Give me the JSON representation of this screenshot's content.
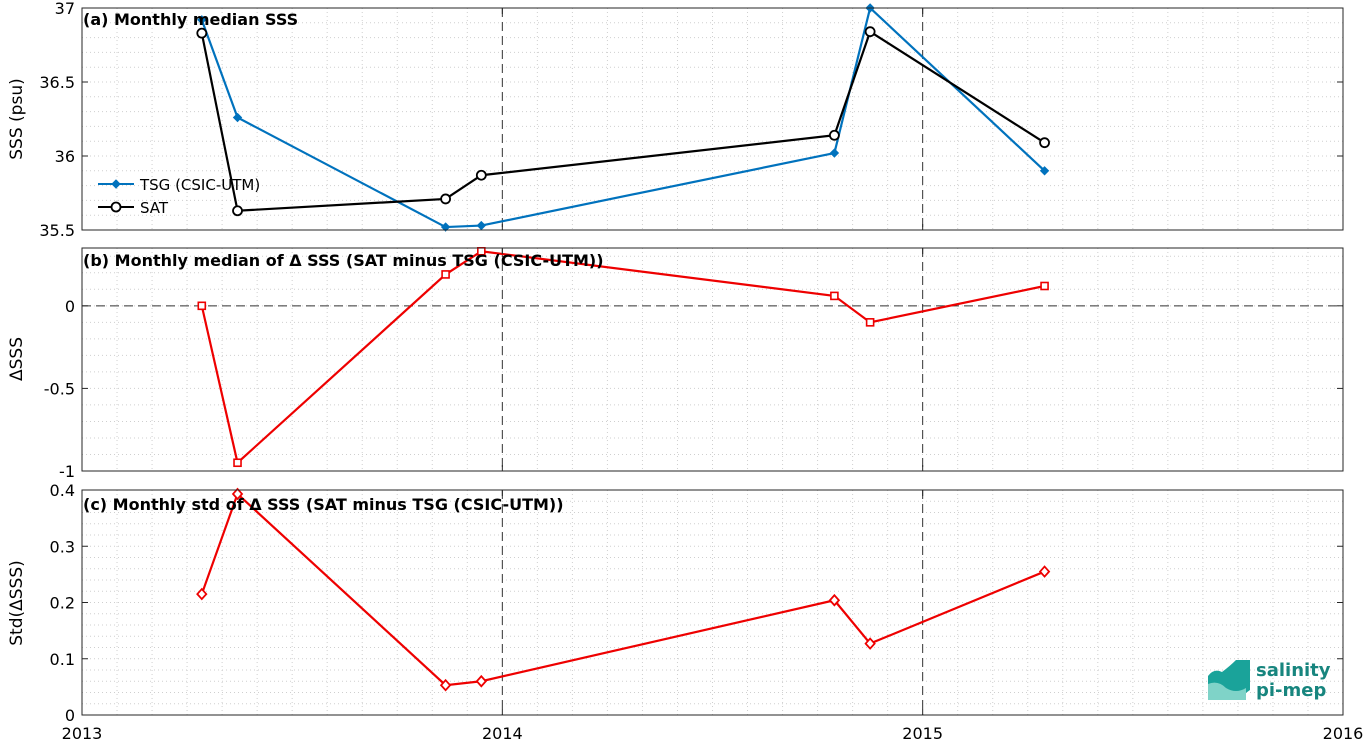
{
  "logo": {
    "line1": "salinity",
    "line2": "pi-mep"
  },
  "x_ticks": [
    {
      "label": "2013",
      "t": 2013.0
    },
    {
      "label": "2014",
      "t": 2014.0
    },
    {
      "label": "2015",
      "t": 2015.0
    },
    {
      "label": "2016",
      "t": 2016.0
    }
  ],
  "chart_data": [
    {
      "type": "line",
      "title": "(a) Monthly median SSS",
      "ylabel": "SSS (psu)",
      "ylim": [
        35.5,
        37
      ],
      "yticks": [
        35.5,
        36,
        36.5,
        37
      ],
      "ytick_labels": [
        "35.5",
        "36",
        "36.5",
        "37"
      ],
      "xlim": [
        2013.0,
        2016.0
      ],
      "grid": true,
      "legend_position": "middle-left",
      "series": [
        {
          "name": "TSG (CSIC-UTM)",
          "color": "#0072BD",
          "marker": "filled-diamond",
          "points": [
            {
              "x": 2013.285,
              "y": 36.92
            },
            {
              "x": 2013.37,
              "y": 36.26
            },
            {
              "x": 2013.865,
              "y": 35.52
            },
            {
              "x": 2013.95,
              "y": 35.53
            },
            {
              "x": 2014.79,
              "y": 36.02
            },
            {
              "x": 2014.875,
              "y": 37.0
            },
            {
              "x": 2015.29,
              "y": 35.9
            }
          ]
        },
        {
          "name": "SAT",
          "color": "#000000",
          "marker": "open-circle",
          "points": [
            {
              "x": 2013.285,
              "y": 36.83
            },
            {
              "x": 2013.37,
              "y": 35.63
            },
            {
              "x": 2013.865,
              "y": 35.71
            },
            {
              "x": 2013.95,
              "y": 35.87
            },
            {
              "x": 2014.79,
              "y": 36.14
            },
            {
              "x": 2014.875,
              "y": 36.84
            },
            {
              "x": 2015.29,
              "y": 36.09
            }
          ]
        }
      ]
    },
    {
      "type": "line",
      "title": "(b) Monthly median of Δ SSS (SAT minus TSG (CSIC-UTM))",
      "ylabel": "ΔSSS",
      "ylim": [
        -1,
        0.35
      ],
      "yticks": [
        -1,
        -0.5,
        0
      ],
      "ytick_labels": [
        "-1",
        "-0.5",
        "0"
      ],
      "xlim": [
        2013.0,
        2016.0
      ],
      "grid": true,
      "zero_line": true,
      "series": [
        {
          "color": "#EE0000",
          "marker": "open-square",
          "points": [
            {
              "x": 2013.285,
              "y": 0.0
            },
            {
              "x": 2013.37,
              "y": -0.95
            },
            {
              "x": 2013.865,
              "y": 0.19
            },
            {
              "x": 2013.95,
              "y": 0.33
            },
            {
              "x": 2014.79,
              "y": 0.06
            },
            {
              "x": 2014.875,
              "y": -0.1
            },
            {
              "x": 2015.29,
              "y": 0.12
            }
          ]
        }
      ]
    },
    {
      "type": "line",
      "title": "(c) Monthly std of Δ SSS (SAT minus TSG (CSIC-UTM))",
      "ylabel": "Std(ΔSSS)",
      "ylim": [
        0,
        0.4
      ],
      "yticks": [
        0,
        0.1,
        0.2,
        0.3,
        0.4
      ],
      "ytick_labels": [
        "0",
        "0.1",
        "0.2",
        "0.3",
        "0.4"
      ],
      "xlim": [
        2013.0,
        2016.0
      ],
      "grid": true,
      "series": [
        {
          "color": "#EE0000",
          "marker": "open-diamond",
          "points": [
            {
              "x": 2013.285,
              "y": 0.215
            },
            {
              "x": 2013.37,
              "y": 0.393
            },
            {
              "x": 2013.865,
              "y": 0.053
            },
            {
              "x": 2013.95,
              "y": 0.06
            },
            {
              "x": 2014.79,
              "y": 0.204
            },
            {
              "x": 2014.875,
              "y": 0.127
            },
            {
              "x": 2015.29,
              "y": 0.255
            }
          ]
        }
      ]
    }
  ]
}
